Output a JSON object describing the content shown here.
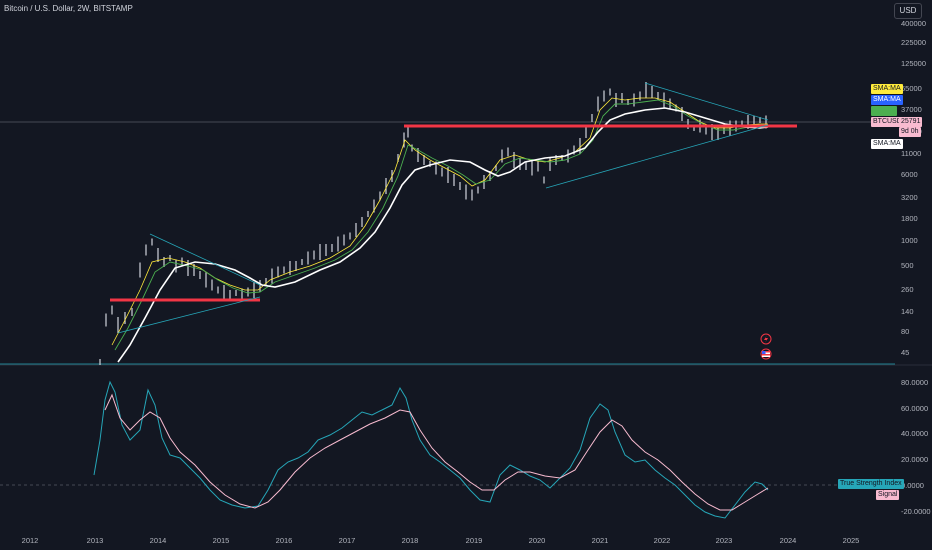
{
  "header": {
    "title": "Bitcoin / U.S. Dollar, 2W, BITSTAMP",
    "currency_button": "USD"
  },
  "price_axis": {
    "labels": [
      "400000",
      "225000",
      "125000",
      "65000",
      "37000",
      "20000",
      "11000",
      "6000",
      "3200",
      "1800",
      "1000",
      "500",
      "260",
      "140",
      "80",
      "45"
    ]
  },
  "price_tags": {
    "sma1": "SMA:MA",
    "sma2": "SMA:MA",
    "sma3": "",
    "symbol": "BTCUSD",
    "price": "25791",
    "countdown": "9d 0h",
    "sma4": "SMA:MA"
  },
  "oscillator_axis": {
    "labels": [
      "80.0000",
      "60.0000",
      "40.0000",
      "20.0000",
      "0.0000",
      "-20.0000"
    ]
  },
  "oscillator_tags": {
    "tsi": "True Strength Index",
    "signal": "Signal"
  },
  "date_axis": {
    "labels": [
      "2012",
      "2013",
      "2014",
      "2015",
      "2016",
      "2017",
      "2018",
      "2019",
      "2020",
      "2021",
      "2022",
      "2023",
      "2024",
      "2025"
    ]
  },
  "colors": {
    "background": "#131722",
    "price_line": "#787b86",
    "support_line": "#f23645",
    "trendline": "#26a6b8",
    "sma_white": "#ffffff",
    "sma_green": "#4caf50",
    "sma_yellow": "#ffeb3b",
    "candle": "#d1d4dc",
    "tsi": "#00bcd4",
    "signal": "#f8bbd0"
  },
  "icons": [
    "lightning-icon",
    "flag-icon"
  ]
}
